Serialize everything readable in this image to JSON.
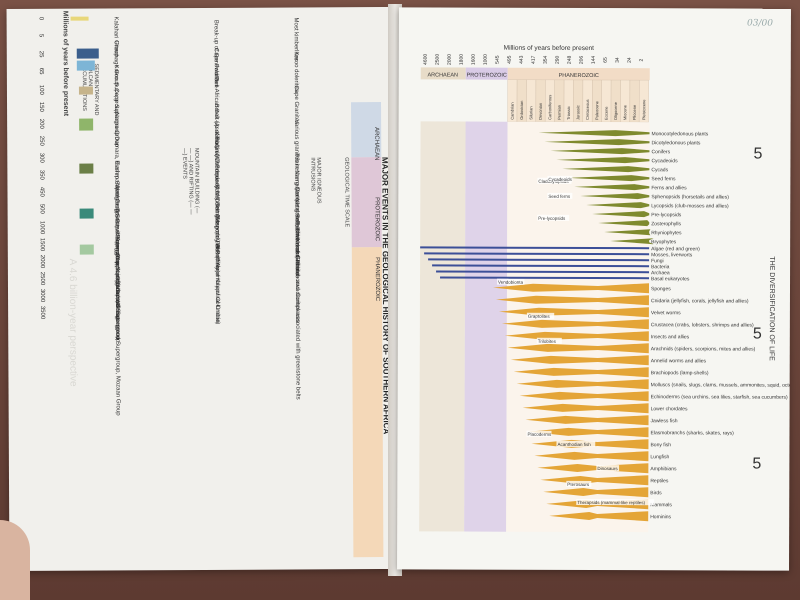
{
  "left_page": {
    "title": "MAJOR EVENTS IN THE GEOLOGICAL HISTORY OF SOUTHERN AFRICA",
    "axis_title": "Millions of years before present",
    "ticks": [
      "0",
      "5",
      "25",
      "65",
      "100",
      "150",
      "200",
      "250",
      "300",
      "350",
      "450",
      "500",
      "1000",
      "1500",
      "2000",
      "2500",
      "3000",
      "3500"
    ],
    "col_sedimentary": "SEDIMENTARY AND VOLCANIC ACCUMULATIONS",
    "col_mountain": "MOUNTAIN BUILDING (— — —) AND RIFTING (— — —) EVENTS",
    "col_igneous": "MAJOR IGNEOUS INTRUSIONS",
    "col_timescale": "GEOLOGICAL TIME SCALE",
    "timescale_heads": [
      "EPOCH",
      "PERIOD",
      "ERA",
      "EON"
    ],
    "eons": [
      "ARCHAEAN",
      "PROTEROZOIC",
      "PHANEROZOIC"
    ],
    "sed_groups": [
      "Kalahari Group",
      "Uitenhage Group",
      "Karoo Supergroup",
      "Cape Supergroup",
      "Nama Group",
      "Damara, Gariep Supergroups, Otavi Supergroup, Kango Groups",
      "Bushmanland Group",
      "Waterberg Soutpansberg Groups, Olifantshoek Supergroup",
      "Transvaal Supergroup",
      "Ventersdorp Supergroup, Witwatersrand Supergroup, Mozaan Group",
      "Dominion, Nsuze Group",
      "Barberton Supergroup"
    ],
    "mountain_events": [
      "Break-up of Gondwana",
      "Cape Fold Belt",
      "Pan-African Belt (Assembly of Gondwana)",
      "Break-up of Rodinia",
      "Kibaran (Namaqua-Natal) Belt (Assembly of Rodinia)",
      "? Break-up of Columbia",
      "Ubendian (Magondi) Belt (? Assembly of Columbia)",
      "Limpopo Belt",
      "Assembly of Kaapvaal Craton"
    ],
    "igneous": [
      "Most kimberlites",
      "Karoo dolerites",
      "Cape Granites",
      "Various granites in Namaqua-Natal Belt, Timbavati Gabbro",
      "Pilanesberg Complex and similar rocks",
      "Various granites in Namaqualand",
      "Bushveld and Phalaborwa Complexes",
      "Granites and diorites associated with greenstone belts"
    ],
    "ts_eras": [
      "Cenozoic",
      "Meso-zoic",
      "Palaeo-zoic",
      "Neo-Proterozoic",
      "Meso-Proterozoic",
      "Palaeo-Proterozoic"
    ],
    "ts_periods": [
      "Quaternary",
      "Neogene",
      "Palaeogene",
      "Tertiary",
      "Cretaceous",
      "Jurassic",
      "Triassic",
      "Permian",
      "Carboniferous",
      "Devonian",
      "Silurian",
      "Ordovician",
      "Cambrian"
    ],
    "ts_numbers": [
      "1000",
      "1600",
      "2500"
    ],
    "watermark": "A 4.6 billion-year perspective"
  },
  "right_page": {
    "axis_title": "Millions of years before present",
    "ticks": [
      "4600",
      "2500",
      "2000",
      "1800",
      "1600",
      "1000",
      "545",
      "495",
      "443",
      "417",
      "354",
      "290",
      "248",
      "206",
      "144",
      "65",
      "34",
      "24",
      "2"
    ],
    "eons": [
      "ARCHAEAN",
      "PROTEROZOIC",
      "PHANEROZOIC"
    ],
    "periods": [
      "Cambrian",
      "Ordovician",
      "Silurian",
      "Devonian",
      "Carboniferous",
      "Permian",
      "Triassic",
      "Jurassic",
      "Cretaceous",
      "Paleocene",
      "Eocene",
      "Oligocene",
      "Miocene",
      "Pliocene",
      "Pleistocene"
    ],
    "side_title": "THE DIVERSIFICATION OF LIFE",
    "side_groups": [
      "Flowering Plants Gymnosperms",
      "Arthropods",
      "Vertebrates"
    ],
    "handwriting": "03/00",
    "plants": [
      "Monocotyledonous plants",
      "Dicotyledonous plants",
      "Conifers",
      "Cycadeoids",
      "Cycads",
      "Seed ferns",
      "Ferns and allies",
      "Sphenopsids (horsetails and allies)",
      "Lycopsids (club-mosses and allies)",
      "Pre-lycopsids",
      "Zosterophylls",
      "Rhyniophytes",
      "Bryophytes"
    ],
    "micro": [
      "Algae (red and green)",
      "Mosses, liverworts",
      "Fungi",
      "Bacteria",
      "Archaea",
      "Basal eukaryotes"
    ],
    "animals": [
      "Sponges",
      "Cnidaria (jellyfish, corals, jellyfish and allies)",
      "Velvet worms",
      "Crustacea (crabs, lobsters, shrimps and allies)",
      "Insects and allies",
      "Arachnids (spiders, scorpions, mites and allies)",
      "Annelid worms and allies",
      "Brachiopods (lamp-shells)",
      "Molluscs (snails, slugs, clams, mussels, ammonites, squid, octopus)",
      "Echinoderms (sea urchins, sea lilies, starfish, sea cucumbers)",
      "Lower chordates",
      "Jawless fish",
      "Elasmobranchs (sharks, skates, rays)",
      "Bony fish",
      "Lungfish",
      "Amphibians",
      "Reptiles",
      "Birds",
      "Mammals",
      "Hominins"
    ],
    "inline_labels": [
      "Vendobionta",
      "Graptolites",
      "Trilobites",
      "Placoderms",
      "Acanthodian fish",
      "Dinosaurs",
      "Pterosaurs",
      "Therapsids (mammal-like reptiles)",
      "Cladoxylopsids",
      "Pre-lycopsids",
      "Seed ferns",
      "Cycadeoids"
    ],
    "colors": {
      "archaean": "#e8dcc8",
      "proterozoic": "#d9cbe6",
      "phanerozoic": "#f2dcc6",
      "plants": "#7f8a2e",
      "animals": "#e4a537",
      "micro": "#3c4f98"
    }
  }
}
